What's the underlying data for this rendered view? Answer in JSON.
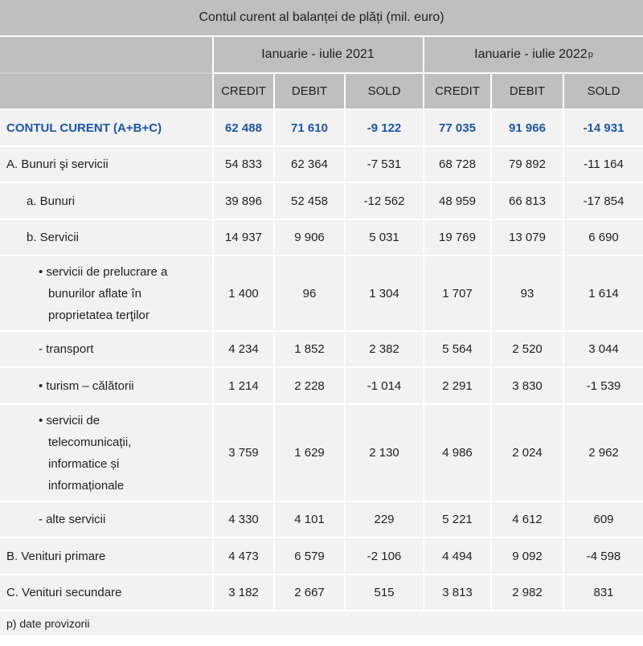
{
  "chart_data": {
    "type": "table",
    "title": "Contul curent al balanței de plăți (mil. euro)",
    "column_groups": [
      "Ianuarie - iulie 2021",
      "Ianuarie - iulie 2022 (p)"
    ],
    "columns": [
      "CREDIT",
      "DEBIT",
      "SOLD",
      "CREDIT",
      "DEBIT",
      "SOLD"
    ],
    "rows": [
      {
        "label": "CONTUL CURENT (A+B+C)",
        "values": [
          62488,
          71610,
          -9122,
          77035,
          91966,
          -14931
        ]
      },
      {
        "label": "A. Bunuri şi servicii",
        "values": [
          54833,
          62364,
          -7531,
          68728,
          79892,
          -11164
        ]
      },
      {
        "label": "a. Bunuri",
        "values": [
          39896,
          52458,
          -12562,
          48959,
          66813,
          -17854
        ]
      },
      {
        "label": "b. Servicii",
        "values": [
          14937,
          9906,
          5031,
          19769,
          13079,
          6690
        ]
      },
      {
        "label": "servicii de prelucrare a bunurilor aflate în proprietatea terţilor",
        "values": [
          1400,
          96,
          1304,
          1707,
          93,
          1614
        ]
      },
      {
        "label": "transport",
        "values": [
          4234,
          1852,
          2382,
          5564,
          2520,
          3044
        ]
      },
      {
        "label": "turism – călătorii",
        "values": [
          1214,
          2228,
          -1014,
          2291,
          3830,
          -1539
        ]
      },
      {
        "label": "servicii de telecomunicații, informatice și informaționale",
        "values": [
          3759,
          1629,
          2130,
          4986,
          2024,
          2962
        ]
      },
      {
        "label": "alte servicii",
        "values": [
          4330,
          4101,
          229,
          5221,
          4612,
          609
        ]
      },
      {
        "label": "B. Venituri primare",
        "values": [
          4473,
          6579,
          -2106,
          4494,
          9092,
          -4598
        ]
      },
      {
        "label": "C. Venituri secundare",
        "values": [
          3182,
          2667,
          515,
          3813,
          2982,
          831
        ]
      }
    ],
    "footnote": "p) date provizorii"
  },
  "table": {
    "title": "Contul curent al balanței de plăți (mil. euro)",
    "period_headers": [
      {
        "label": "Ianuarie - iulie 2021",
        "sup": ""
      },
      {
        "label": "Ianuarie - iulie 2022",
        "sup": "p"
      }
    ],
    "column_headers": [
      "CREDIT",
      "DEBIT",
      "SOLD",
      "CREDIT",
      "DEBIT",
      "SOLD"
    ],
    "rows": [
      {
        "label": "CONTUL CURENT (A+B+C)",
        "indent": 0,
        "emphasis": "blue-bold",
        "values": [
          "62 488",
          "71 610",
          "-9 122",
          "77 035",
          "91 966",
          "-14 931"
        ]
      },
      {
        "label": "A. Bunuri şi servicii",
        "indent": 0,
        "emphasis": "normal",
        "values": [
          "54 833",
          "62 364",
          "-7 531",
          "68 728",
          "79 892",
          "-11 164"
        ]
      },
      {
        "label": "a. Bunuri",
        "indent": 1,
        "emphasis": "normal",
        "values": [
          "39 896",
          "52 458",
          "-12 562",
          "48 959",
          "66 813",
          "-17 854"
        ]
      },
      {
        "label": "b. Servicii",
        "indent": 1,
        "emphasis": "normal",
        "values": [
          "14 937",
          "9 906",
          "5 031",
          "19 769",
          "13 079",
          "6 690"
        ]
      },
      {
        "label": "• servicii de prelucrare a\nbunurilor aflate în\nproprietatea terţilor",
        "indent": 2,
        "emphasis": "normal",
        "values": [
          "1 400",
          "96",
          "1 304",
          "1 707",
          "93",
          "1 614"
        ]
      },
      {
        "label": "- transport",
        "indent": 2,
        "emphasis": "normal",
        "values": [
          "4 234",
          "1 852",
          "2 382",
          "5 564",
          "2 520",
          "3 044"
        ]
      },
      {
        "label": "• turism – călătorii",
        "indent": 2,
        "emphasis": "normal",
        "values": [
          "1 214",
          "2 228",
          "-1 014",
          "2 291",
          "3 830",
          "-1 539"
        ]
      },
      {
        "label": "• servicii de\ntelecomunicații,\ninformatice și\ninformaționale",
        "indent": 2,
        "emphasis": "normal",
        "values": [
          "3 759",
          "1 629",
          "2 130",
          "4 986",
          "2 024",
          "2 962"
        ]
      },
      {
        "label": "- alte servicii",
        "indent": 2,
        "emphasis": "normal",
        "values": [
          "4 330",
          "4 101",
          "229",
          "5 221",
          "4 612",
          "609"
        ]
      },
      {
        "label": "B. Venituri primare",
        "indent": 0,
        "emphasis": "normal",
        "values": [
          "4 473",
          "6 579",
          "-2 106",
          "4 494",
          "9 092",
          "-4 598"
        ]
      },
      {
        "label": "C. Venituri secundare",
        "indent": 0,
        "emphasis": "normal",
        "values": [
          "3 182",
          "2 667",
          "515",
          "3 813",
          "2 982",
          "831"
        ]
      }
    ],
    "footnote": "p) date provizorii"
  },
  "colors": {
    "header_bg": "#bfbfbf",
    "row_bg": "#f2f2f2",
    "grid": "#ffffff",
    "accent_blue": "#1e55a8",
    "text": "#1f1f1f"
  }
}
